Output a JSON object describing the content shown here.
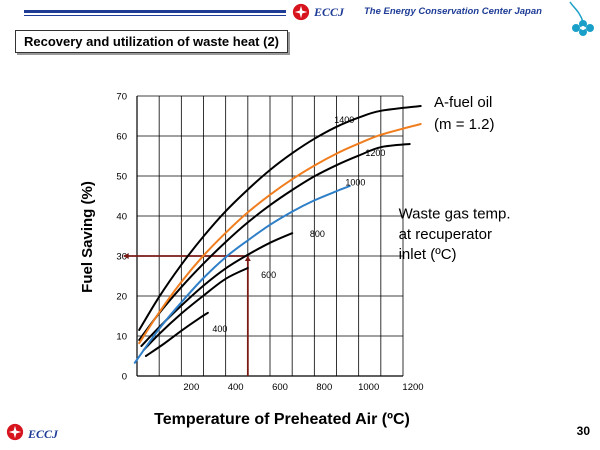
{
  "header": {
    "logo_text": "ECCJ",
    "org_name": "The Energy Conservation Center Japan"
  },
  "slide": {
    "title": "Recovery and utilization of waste heat (2)",
    "page_number": "30"
  },
  "footer": {
    "logo_text": "ECCJ"
  },
  "colors": {
    "brand": "#1e3c96",
    "logo_red": "#d7141e",
    "black_curves": "#000000",
    "a_fuel_curve": "#f07d1e",
    "highlight_curve": "#2f7fc8",
    "guide_line": "#7a1a14",
    "clover": "#1aa0c8"
  },
  "chart_data": {
    "type": "line",
    "xlabel": "Temperature of Preheated Air (ºC)",
    "ylabel": "Fuel Saving (%)",
    "xlim": [
      0,
      1200
    ],
    "ylim": [
      0,
      70
    ],
    "x_ticks": [
      200,
      400,
      600,
      800,
      1000,
      1200
    ],
    "y_ticks": [
      0,
      10,
      20,
      30,
      40,
      50,
      60,
      70
    ],
    "grid": true,
    "series": [
      {
        "name": "400",
        "color": "#000000",
        "points": [
          [
            40,
            5
          ],
          [
            120,
            8
          ],
          [
            200,
            11.3
          ],
          [
            280,
            14.4
          ],
          [
            320,
            15.8
          ]
        ]
      },
      {
        "name": "600",
        "color": "#000000",
        "points": [
          [
            30,
            6.5
          ],
          [
            100,
            10.5
          ],
          [
            200,
            15.6
          ],
          [
            300,
            20.1
          ],
          [
            400,
            24.3
          ],
          [
            500,
            27
          ]
        ]
      },
      {
        "name": "800",
        "color": "#000000",
        "points": [
          [
            20,
            7.5
          ],
          [
            100,
            12.2
          ],
          [
            200,
            17.6
          ],
          [
            300,
            22.6
          ],
          [
            400,
            26.9
          ],
          [
            500,
            30.3
          ],
          [
            600,
            33.3
          ],
          [
            700,
            35.7
          ]
        ]
      },
      {
        "name": "1000",
        "color": "#2f7fc8",
        "points": [
          [
            -10,
            3.3
          ],
          [
            100,
            11.8
          ],
          [
            200,
            18.4
          ],
          [
            300,
            24.5
          ],
          [
            400,
            29.7
          ],
          [
            500,
            33.9
          ],
          [
            600,
            37.8
          ],
          [
            700,
            41.1
          ],
          [
            800,
            43.9
          ],
          [
            900,
            46.2
          ],
          [
            960,
            47.5
          ]
        ]
      },
      {
        "name": "1200",
        "color": "#000000",
        "points": [
          [
            10,
            9
          ],
          [
            100,
            15.7
          ],
          [
            200,
            22.2
          ],
          [
            300,
            28.1
          ],
          [
            400,
            33.5
          ],
          [
            500,
            38.4
          ],
          [
            600,
            42.7
          ],
          [
            700,
            46.5
          ],
          [
            800,
            49.9
          ],
          [
            900,
            52.7
          ],
          [
            1000,
            55.1
          ],
          [
            1100,
            57.2
          ],
          [
            1230,
            58
          ]
        ]
      },
      {
        "name": "A-fuel oil (m = 1.2)",
        "color": "#f07d1e",
        "points": [
          [
            10,
            8.2
          ],
          [
            100,
            15.9
          ],
          [
            200,
            23.5
          ],
          [
            300,
            30.1
          ],
          [
            400,
            35.8
          ],
          [
            500,
            40.9
          ],
          [
            600,
            45.3
          ],
          [
            700,
            49.2
          ],
          [
            800,
            52.6
          ],
          [
            900,
            55.6
          ],
          [
            1000,
            58.1
          ],
          [
            1100,
            60.3
          ],
          [
            1280,
            63
          ]
        ]
      },
      {
        "name": "1400",
        "color": "#000000",
        "points": [
          [
            10,
            11.5
          ],
          [
            100,
            19.8
          ],
          [
            200,
            27.8
          ],
          [
            300,
            34.9
          ],
          [
            400,
            41.2
          ],
          [
            500,
            46.6
          ],
          [
            600,
            51.5
          ],
          [
            700,
            55.7
          ],
          [
            800,
            59.3
          ],
          [
            900,
            62.3
          ],
          [
            1000,
            64.6
          ],
          [
            1100,
            66.3
          ],
          [
            1280,
            67.5
          ]
        ]
      }
    ],
    "curve_labels": [
      {
        "text": "400",
        "x": 340,
        "y": 11
      },
      {
        "text": "600",
        "x": 560,
        "y": 24.5
      },
      {
        "text": "800",
        "x": 780,
        "y": 34.8
      },
      {
        "text": "1000",
        "x": 940,
        "y": 47.6
      },
      {
        "text": "1200",
        "x": 1030,
        "y": 55
      },
      {
        "text": "1400",
        "x": 890,
        "y": 63.2
      }
    ],
    "annotations": [
      {
        "text": "A-fuel oil",
        "x": 1340,
        "y": 67.3
      },
      {
        "text": "(m = 1.2)",
        "x": 1340,
        "y": 61.7
      },
      {
        "text": "Waste gas temp.",
        "x": 1180,
        "y": 39.4
      },
      {
        "text": "at recuperator",
        "x": 1180,
        "y": 34.3
      },
      {
        "text": "inlet (ºC)",
        "x": 1180,
        "y": 29.2
      }
    ],
    "reference_lines": [
      {
        "from": [
          -60,
          30
        ],
        "to": [
          500,
          30
        ],
        "color": "#7a1a14"
      },
      {
        "from": [
          500,
          30
        ],
        "to": [
          500,
          0
        ],
        "color": "#7a1a14"
      }
    ]
  }
}
